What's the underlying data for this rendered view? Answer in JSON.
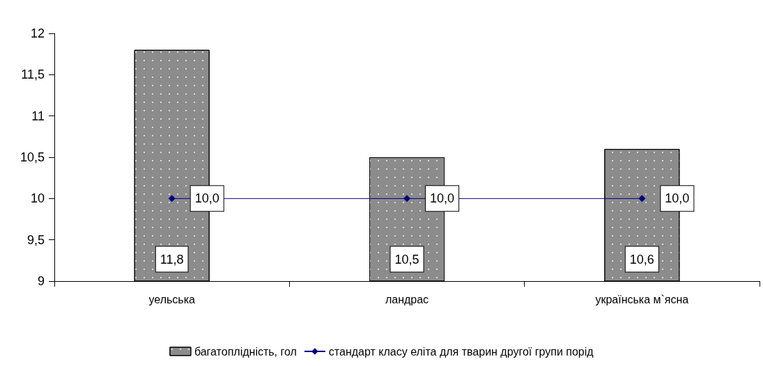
{
  "chart_data": {
    "type": "bar",
    "categories": [
      "уельська",
      "ландрас",
      "українська м`ясна"
    ],
    "series": [
      {
        "name": "багатоплідність, гол",
        "color": "#8c8c8c",
        "values": [
          11.8,
          10.5,
          10.6
        ],
        "value_labels": [
          "11,8",
          "10,5",
          "10,6"
        ]
      },
      {
        "name": "стандарт класу еліта для тварин другої групи порід",
        "type": "line",
        "color": "#000080",
        "marker": "diamond",
        "values": [
          10,
          10,
          10
        ],
        "value_labels": [
          "10,0",
          "10,0",
          "10,0"
        ]
      }
    ],
    "ylim": [
      9,
      12
    ],
    "yticks": [
      9,
      {
        "value": 9.5,
        "label": "9,5"
      },
      10,
      {
        "value": 10.5,
        "label": "10,5"
      },
      11,
      {
        "value": 11.5,
        "label": "11,5"
      },
      12
    ],
    "grid": false,
    "legend": "bottom"
  }
}
